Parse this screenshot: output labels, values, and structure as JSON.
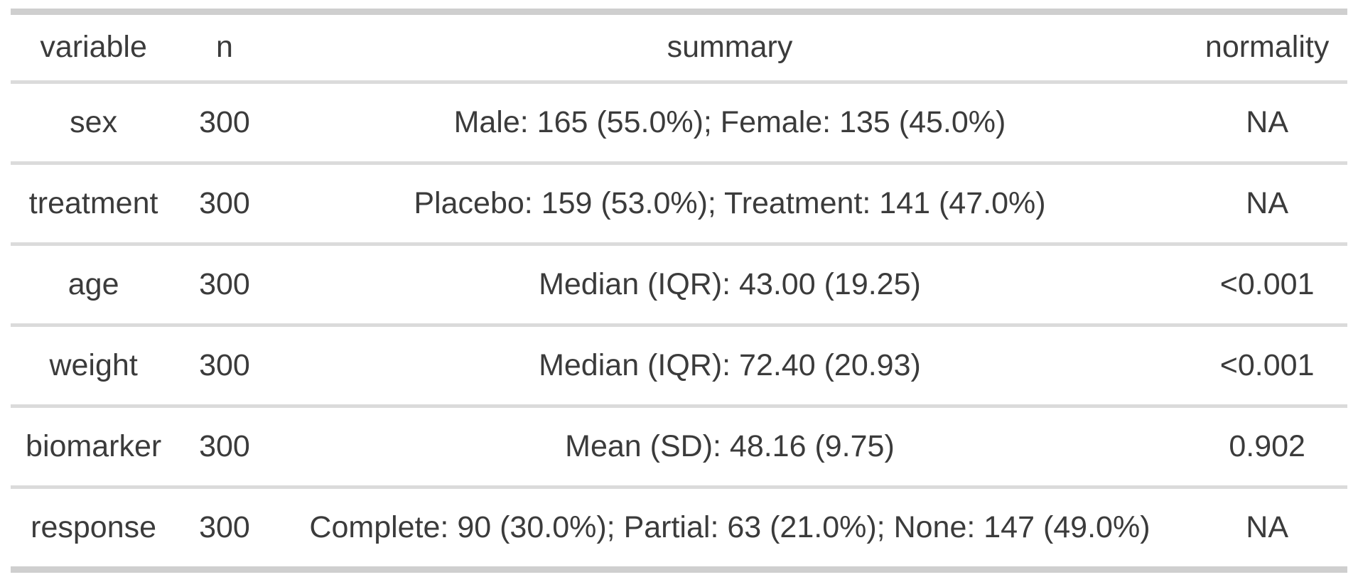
{
  "chart_data": {
    "type": "table",
    "columns": [
      "variable",
      "n",
      "summary",
      "normality"
    ],
    "rows": [
      [
        "sex",
        "300",
        "Male: 165 (55.0%); Female: 135 (45.0%)",
        "NA"
      ],
      [
        "treatment",
        "300",
        "Placebo: 159 (53.0%); Treatment: 141 (47.0%)",
        "NA"
      ],
      [
        "age",
        "300",
        "Median (IQR): 43.00 (19.25)",
        "<0.001"
      ],
      [
        "weight",
        "300",
        "Median (IQR): 72.40 (20.93)",
        "<0.001"
      ],
      [
        "biomarker",
        "300",
        "Mean (SD): 48.16 (9.75)",
        "0.902"
      ],
      [
        "response",
        "300",
        "Complete: 90 (30.0%); Partial: 63 (21.0%); None: 147 (49.0%)",
        "NA"
      ]
    ],
    "layout": {
      "grid": "horizontal-rules-only",
      "alignment": "center",
      "header_weight": "regular"
    },
    "colors": {
      "text": "#3b3b3b",
      "outer_border": "#cfcfcf",
      "inner_border": "#dbdbdb",
      "background": "#ffffff"
    }
  }
}
